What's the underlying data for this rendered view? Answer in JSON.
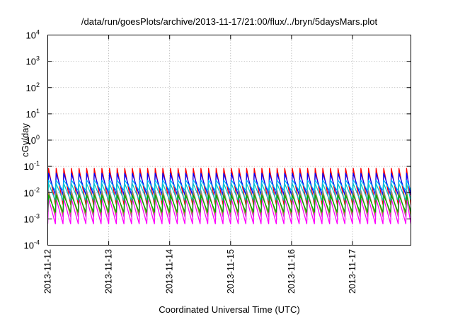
{
  "chart_data": {
    "type": "line",
    "title": "/data/run/goesPlots/archive/2013-11-17/21:00/flux/../bryn/5daysMars.plot",
    "xlabel": "Coordinated Universal Time (UTC)",
    "ylabel": "cGy/day",
    "yscale": "log",
    "ylim": [
      0.0001,
      10000
    ],
    "xlim": [
      "2013-11-12T00:00",
      "2013-11-17T23:00"
    ],
    "grid": true,
    "legend": "none",
    "y_ticks": [
      {
        "base": "10",
        "exp": "-4"
      },
      {
        "base": "10",
        "exp": "-3"
      },
      {
        "base": "10",
        "exp": "-2"
      },
      {
        "base": "10",
        "exp": "-1"
      },
      {
        "base": "10",
        "exp": "0"
      },
      {
        "base": "10",
        "exp": "1"
      },
      {
        "base": "10",
        "exp": "2"
      },
      {
        "base": "10",
        "exp": "3"
      },
      {
        "base": "10",
        "exp": "4"
      }
    ],
    "x_ticks": [
      "2013-11-12",
      "2013-11-13",
      "2013-11-14",
      "2013-11-15",
      "2013-11-16",
      "2013-11-17"
    ],
    "pattern": {
      "period_hours": 3,
      "peak_offset_hours": 0.3
    },
    "series": [
      {
        "color": "#ff0000",
        "peak": 0.085,
        "trough": 0.0035
      },
      {
        "color": "#0000ff",
        "peak": 0.055,
        "trough": 0.008
      },
      {
        "color": "#00b4ff",
        "peak": 0.03,
        "trough": 0.012
      },
      {
        "color": "#00c8c8",
        "peak": 0.022,
        "trough": 0.005
      },
      {
        "color": "#888888",
        "peak": 0.012,
        "trough": 0.0012
      },
      {
        "color": "#b8860b",
        "peak": 0.009,
        "trough": 0.0015
      },
      {
        "color": "#ff00ff",
        "peak": 0.006,
        "trough": 0.00065
      },
      {
        "color": "#00aa00",
        "peak": 0.008,
        "trough": 0.0018
      }
    ]
  }
}
